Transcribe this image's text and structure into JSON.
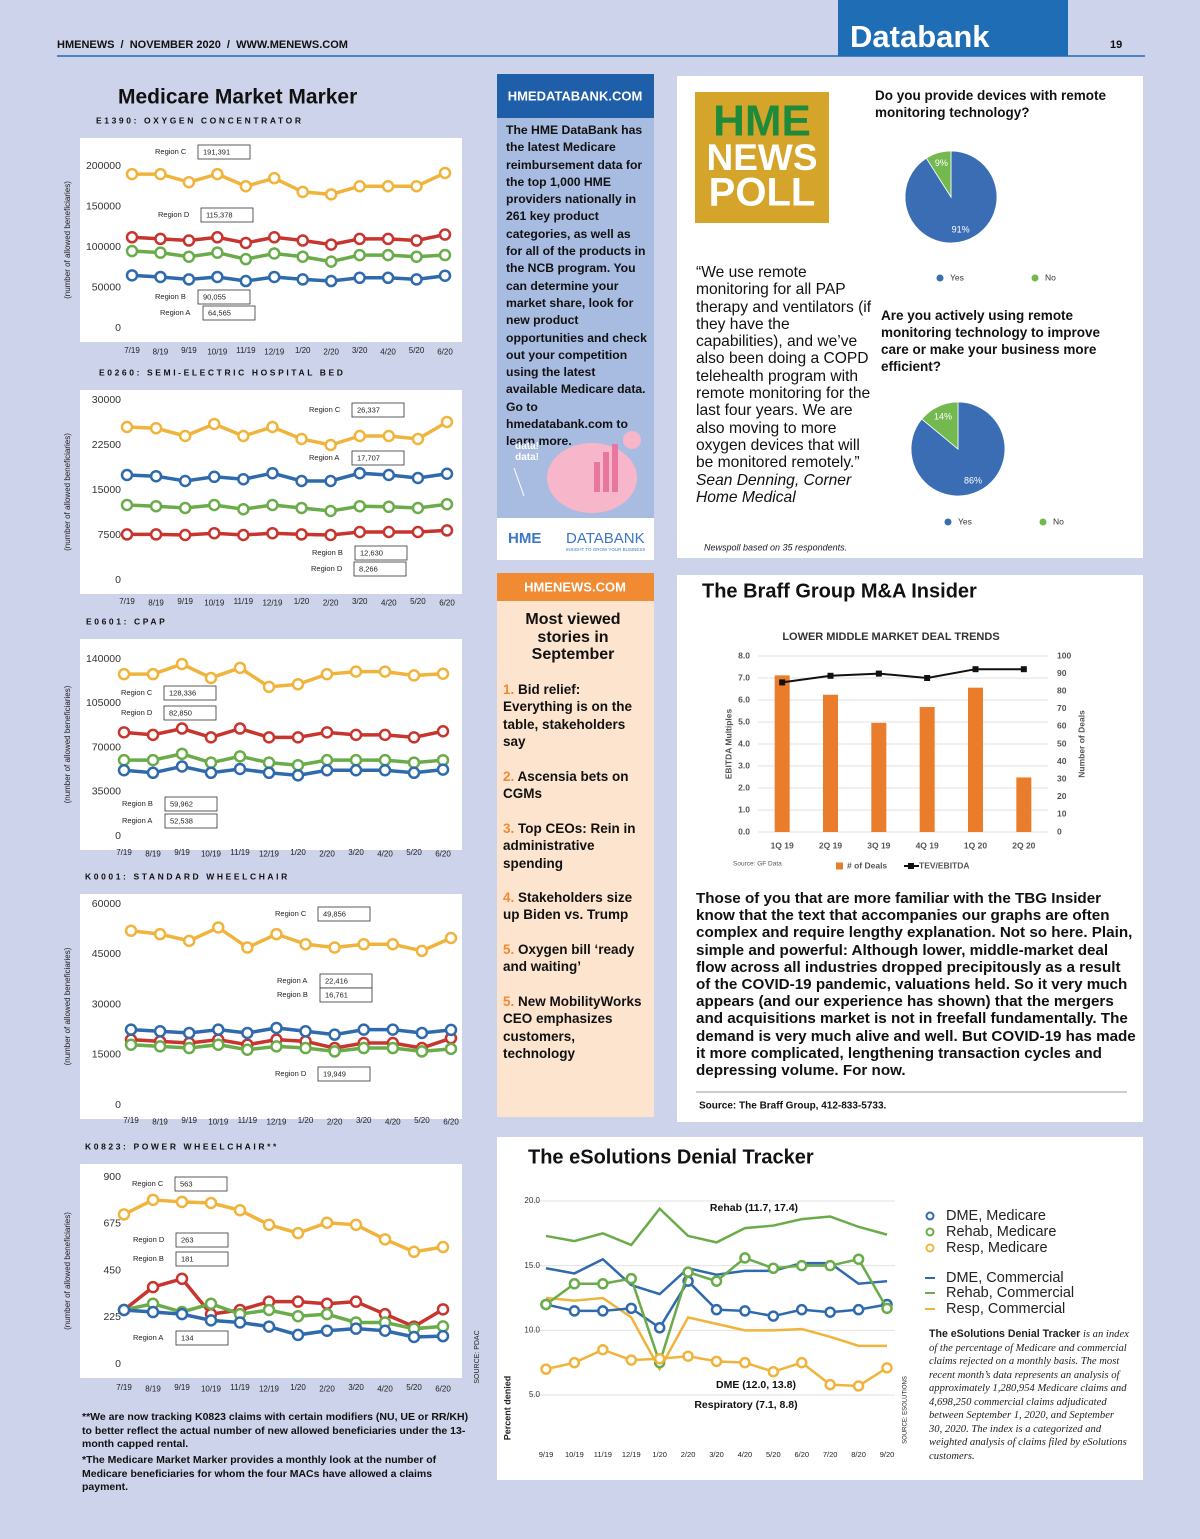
{
  "header": {
    "masthead": "HMENEWS  /  NOVEMBER 2020  /  WWW.MENEWS.COM",
    "section": "Databank",
    "page": "19"
  },
  "market_marker": {
    "title": "Medicare Market Marker",
    "source": "SOURCE: PDAC",
    "footnotes": [
      "**We are now tracking K0823 claims with certain modifiers (NU, UE or RR/KH) to better reflect the actual number of new allowed beneficiaries under the 13-month capped rental.",
      "*The Medicare Market Marker provides a monthly look at the number of Medicare beneficiaries for whom the four MACs have allowed a claims payment."
    ]
  },
  "databank_ad": {
    "header": "HMEDATABANK.COM",
    "body": "The HME DataBank has the latest Medicare reimbursement data for the top 1,000 HME providers nationally in 261 key product categories, as well as for all of the products in the NCB program. You can determine your market share, look for new product opportunities and check out your competition using the latest available Medicare data. Go to hmedatabank.com to learn more.",
    "bubble": "data! data!",
    "logo": "HME",
    "logo_word": "DATABANK",
    "tagline": "INSIGHT TO GROW YOUR BUSINESS"
  },
  "most_viewed": {
    "header": "HMENEWS.COM",
    "title": "Most viewed stories in September",
    "stories": [
      {
        "number": "1.",
        "text": "Bid relief: Everything is on the table, stakeholders say"
      },
      {
        "number": "2.",
        "text": "Ascensia bets on CGMs"
      },
      {
        "number": "3.",
        "text": "Top CEOs: Rein in administrative spending"
      },
      {
        "number": "4.",
        "text": "Stakeholders size up Biden vs. Trump"
      },
      {
        "number": "5.",
        "text": "Oxygen bill ‘ready and waiting’"
      },
      {
        "number": "5.",
        "text": "New MobilityWorks CEO emphasizes customers, technology"
      }
    ]
  },
  "poll": {
    "logo": [
      "HME",
      "NEWS",
      "POLL"
    ],
    "quote": "“We use remote monitoring for all PAP therapy and ventilators (if they have the capabilities), and we’ve also been doing a COPD telehealth program with remote monitoring for the last four years. We are also moving to more oxygen devices that will be monitored remotely.”",
    "attribution": "Sean Denning, Corner Home Medical",
    "note": "Newspoll based on 35 respondents."
  },
  "braff": {
    "title": "The Braff Group M&A Insider",
    "body": "Those of you that are more familiar with the TBG Insider know that the text that accompanies our graphs are often complex and require lengthy explanation. Not so here. Plain, simple and powerful: Although lower, middle-market deal flow across all industries dropped precipitously as a result of the COVID-19 pandemic, valuations held. So it very much appears (and our experience has shown) that the mergers and acquisitions market is not in freefall fundamentally. The demand is very much alive and well. But COVID-19 has made it more complicated, lengthening transaction cycles and depressing volume. For now.",
    "source": "Source: The Braff Group, 412-833-5733."
  },
  "esolutions": {
    "title": "The eSolutions Denial Tracker",
    "description_lead": "The eSolutions Denial Tracker",
    "description": " is an index of the percentage of Medicare and commercial claims rejected on a monthly basis. The most recent month’s data represents an analysis of approximately 1,280,954 Medicare claims and 4,698,250 commercial claims adjudicated between September 1, 2020, and September 30, 2020. The index is a categorized and weighted analysis of claims filed by eSolutions customers.",
    "source": "SOURCE: ESOLUTIONS"
  },
  "chart_data": [
    {
      "type": "line",
      "title": "E1390: OXYGEN CONCENTRATOR",
      "ylabel": "(number of allowed beneficiaries)",
      "markers": true,
      "categories": [
        "7/19",
        "8/19",
        "9/19",
        "10/19",
        "11/19",
        "12/19",
        "1/20",
        "2/20",
        "3/20",
        "4/20",
        "5/20",
        "6/20"
      ],
      "ylim": [
        0,
        200000
      ],
      "yticks": [
        0,
        50000,
        100000,
        150000,
        200000
      ],
      "series": [
        {
          "name": "Region A",
          "color": "#2f6aad",
          "values": [
            65000,
            63000,
            60000,
            63000,
            58000,
            63000,
            60000,
            58000,
            62000,
            62000,
            60000,
            64565
          ],
          "label": "64,565"
        },
        {
          "name": "Region B",
          "color": "#6aab4a",
          "values": [
            95000,
            93000,
            88000,
            93000,
            85000,
            92000,
            88000,
            82000,
            90000,
            90000,
            88000,
            90055
          ],
          "label": "90,055"
        },
        {
          "name": "Region C",
          "color": "#f0b43c",
          "values": [
            190000,
            190000,
            180000,
            190000,
            175000,
            185000,
            168000,
            165000,
            175000,
            175000,
            175000,
            191391
          ],
          "label": "191,391"
        },
        {
          "name": "Region D",
          "color": "#c8342e",
          "values": [
            112000,
            110000,
            108000,
            112000,
            105000,
            112000,
            108000,
            103000,
            110000,
            110000,
            108000,
            115378
          ],
          "label": "115,378"
        }
      ]
    },
    {
      "type": "line",
      "title": "E0260: SEMI-ELECTRIC HOSPITAL BED",
      "ylabel": "(number of allowed beneficiaries)",
      "markers": true,
      "categories": [
        "7/19",
        "8/19",
        "9/19",
        "10/19",
        "11/19",
        "12/19",
        "1/20",
        "2/20",
        "3/20",
        "4/20",
        "5/20",
        "6/20"
      ],
      "ylim": [
        0,
        30000
      ],
      "yticks": [
        0,
        7500,
        15000,
        22500,
        30000
      ],
      "series": [
        {
          "name": "Region A",
          "color": "#2f6aad",
          "values": [
            17500,
            17300,
            16500,
            17200,
            16800,
            17800,
            16500,
            16500,
            17800,
            17500,
            17000,
            17707
          ],
          "label": "17,707"
        },
        {
          "name": "Region B",
          "color": "#6aab4a",
          "values": [
            12500,
            12300,
            12000,
            12500,
            11800,
            12500,
            12000,
            11500,
            12300,
            12200,
            12000,
            12630
          ],
          "label": "12,630"
        },
        {
          "name": "Region C",
          "color": "#f0b43c",
          "values": [
            25500,
            25300,
            24000,
            26000,
            24000,
            25500,
            23500,
            22500,
            24000,
            24000,
            23500,
            26337
          ],
          "label": "26,337"
        },
        {
          "name": "Region D",
          "color": "#c8342e",
          "values": [
            7600,
            7600,
            7500,
            7800,
            7500,
            7800,
            7600,
            7500,
            8000,
            8000,
            8000,
            8266
          ],
          "label": "8,266"
        }
      ]
    },
    {
      "type": "line",
      "title": "E0601: CPAP",
      "ylabel": "(number of allowed beneficiaries)",
      "markers": true,
      "categories": [
        "7/19",
        "8/19",
        "9/19",
        "10/19",
        "11/19",
        "12/19",
        "1/20",
        "2/20",
        "3/20",
        "4/20",
        "5/20",
        "6/20"
      ],
      "ylim": [
        0,
        140000
      ],
      "yticks": [
        0,
        35000,
        70000,
        105000,
        140000
      ],
      "series": [
        {
          "name": "Region A",
          "color": "#2f6aad",
          "values": [
            52000,
            50000,
            55000,
            50000,
            53000,
            50000,
            48000,
            52000,
            52000,
            52000,
            50000,
            52538
          ],
          "label": "52,538"
        },
        {
          "name": "Region B",
          "color": "#6aab4a",
          "values": [
            60000,
            60000,
            65000,
            58000,
            63000,
            58000,
            56000,
            60000,
            60000,
            60000,
            58000,
            59962
          ],
          "label": "59,962"
        },
        {
          "name": "Region C",
          "color": "#f0b43c",
          "values": [
            128000,
            128000,
            136000,
            125000,
            133000,
            118000,
            120000,
            128000,
            130000,
            130000,
            127000,
            128336
          ],
          "label": "128,336"
        },
        {
          "name": "Region D",
          "color": "#c8342e",
          "values": [
            82000,
            80000,
            85000,
            78000,
            85000,
            78000,
            78000,
            82000,
            80000,
            80000,
            78000,
            82850
          ],
          "label": "82,850"
        }
      ]
    },
    {
      "type": "line",
      "title": "K0001: STANDARD WHEELCHAIR",
      "ylabel": "(number of allowed beneficiaries)",
      "markers": true,
      "categories": [
        "7/19",
        "8/19",
        "9/19",
        "10/19",
        "11/19",
        "12/19",
        "1/20",
        "2/20",
        "3/20",
        "4/20",
        "5/20",
        "6/20"
      ],
      "ylim": [
        0,
        60000
      ],
      "yticks": [
        0,
        15000,
        30000,
        45000,
        60000
      ],
      "series": [
        {
          "name": "Region A",
          "color": "#2f6aad",
          "values": [
            22500,
            22000,
            21500,
            22500,
            21500,
            23000,
            22000,
            21000,
            22500,
            22500,
            21500,
            22416
          ],
          "label": "22,416"
        },
        {
          "name": "Region B",
          "color": "#6aab4a",
          "values": [
            18000,
            17500,
            17000,
            18000,
            16500,
            17500,
            17000,
            16000,
            17000,
            17000,
            16000,
            16761
          ],
          "label": "16,761"
        },
        {
          "name": "Region C",
          "color": "#f0b43c",
          "values": [
            52000,
            51000,
            49000,
            53000,
            47000,
            51000,
            48000,
            47000,
            48000,
            48000,
            46000,
            49856
          ],
          "label": "49,856"
        },
        {
          "name": "Region D",
          "color": "#c8342e",
          "values": [
            19500,
            19000,
            18500,
            19500,
            18000,
            19500,
            19000,
            17000,
            18500,
            18500,
            17000,
            19949
          ],
          "label": "19,949"
        }
      ]
    },
    {
      "type": "line",
      "title": "K0823: POWER WHEELCHAIR**",
      "ylabel": "(number of allowed beneficiaries)",
      "markers": true,
      "categories": [
        "7/19",
        "8/19",
        "9/19",
        "10/19",
        "11/19",
        "12/19",
        "1/20",
        "2/20",
        "3/20",
        "4/20",
        "5/20",
        "6/20"
      ],
      "ylim": [
        0,
        900
      ],
      "yticks": [
        0,
        225,
        450,
        675,
        900
      ],
      "series": [
        {
          "name": "Region A",
          "color": "#2f6aad",
          "values": [
            260,
            250,
            240,
            210,
            200,
            180,
            140,
            160,
            170,
            160,
            130,
            134
          ],
          "label": "134"
        },
        {
          "name": "Region B",
          "color": "#6aab4a",
          "values": [
            260,
            290,
            250,
            290,
            240,
            260,
            230,
            240,
            200,
            200,
            170,
            181
          ],
          "label": "181"
        },
        {
          "name": "Region C",
          "color": "#f0b43c",
          "values": [
            720,
            790,
            780,
            775,
            740,
            670,
            630,
            680,
            670,
            600,
            540,
            563
          ],
          "label": "563"
        },
        {
          "name": "Region D",
          "color": "#c8342e",
          "values": [
            260,
            370,
            410,
            240,
            260,
            300,
            300,
            290,
            300,
            240,
            180,
            263
          ],
          "label": "263"
        }
      ]
    },
    {
      "type": "pie",
      "title": "Do you provide devices with remote monitoring technology?",
      "categories": [
        "Yes",
        "No"
      ],
      "values": [
        91,
        9
      ],
      "value_labels": [
        "91%",
        "9%"
      ],
      "colors": [
        "#3b6db4",
        "#73b94f"
      ]
    },
    {
      "type": "pie",
      "title": "Are you actively using remote monitoring technology to improve care or make your business more efficient?",
      "categories": [
        "Yes",
        "No"
      ],
      "values": [
        86,
        14
      ],
      "value_labels": [
        "86%",
        "14%"
      ],
      "colors": [
        "#3b6db4",
        "#73b94f"
      ]
    },
    {
      "type": "combo",
      "title": "LOWER MIDDLE MARKET DEAL TRENDS",
      "ylabel": "EBITDA Multiples",
      "y2label": "Number of Deals",
      "source": "Source: GF Data",
      "grid": true,
      "categories": [
        "1Q 19",
        "2Q 19",
        "3Q 19",
        "4Q 19",
        "1Q 20",
        "2Q 20"
      ],
      "ylim": [
        0,
        8
      ],
      "yticks": [
        {
          "value": 0,
          "label": "0.0"
        },
        {
          "value": 1,
          "label": "1.0"
        },
        {
          "value": 2,
          "label": "2.0"
        },
        {
          "value": 3,
          "label": "3.0"
        },
        {
          "value": 4,
          "label": "4.0"
        },
        {
          "value": 5,
          "label": "5.0"
        },
        {
          "value": 6,
          "label": "6.0"
        },
        {
          "value": 7,
          "label": "7.0"
        },
        {
          "value": 8,
          "label": "8.0"
        }
      ],
      "y2lim": [
        0,
        100
      ],
      "y2ticks": [
        0,
        10,
        20,
        30,
        40,
        50,
        60,
        70,
        80,
        90,
        100
      ],
      "series": [
        {
          "name": "# of Deals",
          "kind": "bar",
          "axis": "y2",
          "color": "#ea7d2b",
          "values": [
            89,
            78,
            62,
            71,
            82,
            31
          ]
        },
        {
          "name": "TEV/EBITDA",
          "kind": "line",
          "color": "#111111",
          "values": [
            6.8,
            7.1,
            7.2,
            7.0,
            7.4,
            7.4
          ]
        }
      ]
    },
    {
      "type": "line",
      "ylabel": "Percent denied",
      "grid": true,
      "categories": [
        "9/19",
        "10/19",
        "11/19",
        "12/19",
        "1/20",
        "2/20",
        "3/20",
        "4/20",
        "5/20",
        "6/20",
        "7/20",
        "8/20",
        "9/20"
      ],
      "ylim": [
        5,
        20
      ],
      "yticks": [
        {
          "value": 5,
          "label": "5.0"
        },
        {
          "value": 10,
          "label": "10.0"
        },
        {
          "value": 15,
          "label": "15.0"
        },
        {
          "value": 20,
          "label": "20.0"
        }
      ],
      "annotations": [
        "Rehab (11.7, 17.4)",
        "DME (12.0, 13.8)",
        "Respiratory (7.1, 8.8)"
      ],
      "series": [
        {
          "name": "DME, Medicare",
          "color": "#2f6aad",
          "marker": "circle",
          "values": [
            12.0,
            11.5,
            11.5,
            11.7,
            10.2,
            13.8,
            11.6,
            11.5,
            11.1,
            11.6,
            11.4,
            11.6,
            12.0
          ]
        },
        {
          "name": "Rehab, Medicare",
          "color": "#6aab4a",
          "marker": "circle",
          "values": [
            12.0,
            13.6,
            13.6,
            14.0,
            7.5,
            14.5,
            13.8,
            15.6,
            14.8,
            15.0,
            15.0,
            15.5,
            11.7
          ]
        },
        {
          "name": "Resp, Medicare",
          "color": "#f0b43c",
          "marker": "circle",
          "values": [
            7.0,
            7.5,
            8.5,
            7.7,
            7.8,
            8.0,
            7.6,
            7.5,
            6.8,
            7.5,
            5.8,
            5.7,
            7.1
          ]
        },
        {
          "name": "DME, Commercial",
          "color": "#2f6aad",
          "values": [
            14.8,
            14.4,
            15.5,
            13.5,
            12.8,
            14.8,
            14.3,
            14.6,
            14.6,
            15.2,
            15.2,
            13.6,
            13.8
          ]
        },
        {
          "name": "Rehab, Commercial",
          "color": "#6aab4a",
          "values": [
            17.3,
            16.9,
            17.5,
            16.6,
            19.4,
            17.3,
            16.8,
            17.9,
            18.1,
            18.6,
            18.8,
            18.0,
            17.4
          ]
        },
        {
          "name": "Resp, Commercial",
          "color": "#f0b43c",
          "values": [
            12.5,
            12.3,
            12.5,
            11.0,
            7.0,
            11.0,
            10.5,
            10.0,
            10.0,
            10.1,
            9.5,
            8.8,
            8.8
          ]
        }
      ]
    }
  ]
}
